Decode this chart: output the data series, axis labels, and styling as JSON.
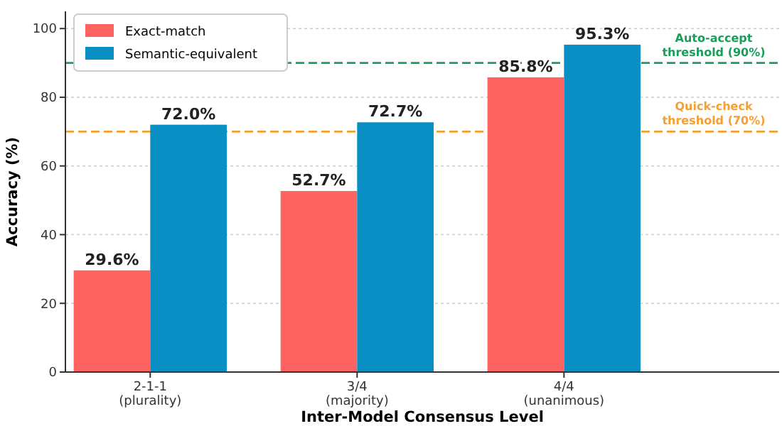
{
  "chart_data": {
    "type": "bar",
    "xlabel": "Inter-Model Consensus Level",
    "ylabel": "Accuracy (%)",
    "categories": [
      "2-1-1 (plurality)",
      "3/4 (majority)",
      "4/4 (unanimous)"
    ],
    "series": [
      {
        "name": "Exact-match",
        "color": "#ff6361",
        "values": [
          29.6,
          52.7,
          85.8
        ]
      },
      {
        "name": "Semantic-equivalent",
        "color": "#0a8fc4",
        "values": [
          72.0,
          72.7,
          95.3
        ]
      }
    ],
    "value_labels": [
      [
        "29.6%",
        "52.7%",
        "85.8%"
      ],
      [
        "72.0%",
        "72.7%",
        "95.3%"
      ]
    ],
    "ylim": [
      0,
      105
    ],
    "yticks": [
      0,
      20,
      40,
      60,
      80,
      100
    ],
    "grid": "y",
    "legend": "top left",
    "ref_lines": [
      {
        "axis": "y",
        "value": 90,
        "label": "Auto-accept threshold (90%)",
        "color": "#1a9e5c",
        "line_style": "dashed"
      },
      {
        "axis": "y",
        "value": 70,
        "label": "Quick-check threshold (70%)",
        "color": "#f5a030",
        "line_style": "dashed"
      }
    ]
  }
}
